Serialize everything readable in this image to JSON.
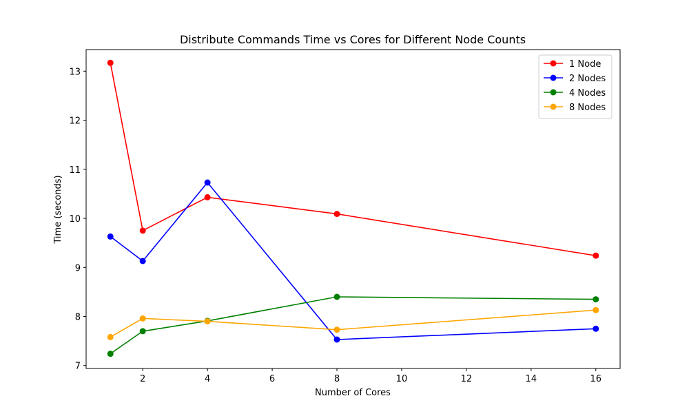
{
  "chart_data": {
    "type": "line",
    "title": "Distribute Commands Time vs Cores for Different Node Counts",
    "xlabel": "Number of Cores",
    "ylabel": "Time (seconds)",
    "xlim": [
      0.25,
      16.75
    ],
    "ylim": [
      6.94,
      13.44
    ],
    "xticks": [
      2,
      4,
      6,
      8,
      10,
      12,
      14,
      16
    ],
    "yticks": [
      7,
      8,
      9,
      10,
      11,
      12,
      13
    ],
    "x": [
      1,
      2,
      4,
      8,
      16
    ],
    "legend_position": "top-right",
    "grid": false,
    "series": [
      {
        "name": "1 Node",
        "color": "#ff0000",
        "values": [
          13.17,
          9.75,
          10.43,
          10.09,
          9.24
        ]
      },
      {
        "name": "2 Nodes",
        "color": "#0000ff",
        "values": [
          9.63,
          9.13,
          10.73,
          7.53,
          7.75
        ]
      },
      {
        "name": "4 Nodes",
        "color": "#008000",
        "values": [
          7.24,
          7.7,
          7.91,
          8.4,
          8.35
        ]
      },
      {
        "name": "8 Nodes",
        "color": "#ffa500",
        "values": [
          7.58,
          7.96,
          7.9,
          7.73,
          8.13
        ]
      }
    ]
  }
}
